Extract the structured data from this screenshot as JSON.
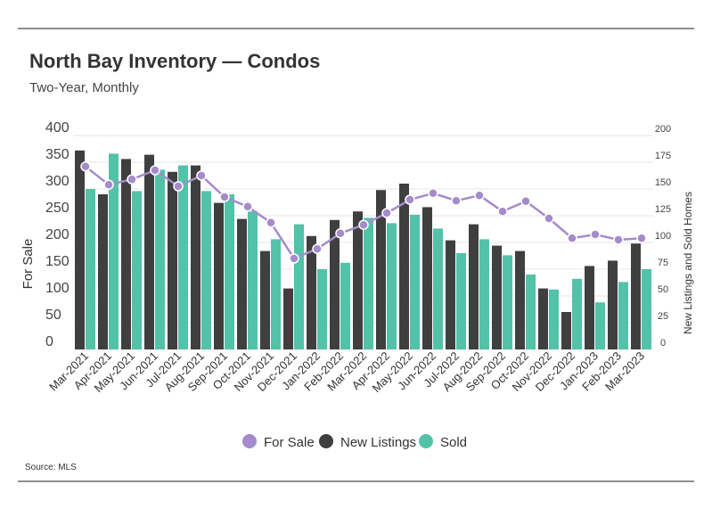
{
  "chart_data": {
    "type": "bar-line",
    "title": "North Bay Inventory — Condos",
    "subtitle": "Two-Year, Monthly",
    "source": "Source: MLS",
    "y_label": "For Sale",
    "y2_label": "New Listings and Sold Homes",
    "categories": [
      "Mar-2021",
      "Apr-2021",
      "May-2021",
      "Jun-2021",
      "Jul-2021",
      "Aug-2021",
      "Sep-2021",
      "Oct-2021",
      "Nov-2021",
      "Dec-2021",
      "Jan-2022",
      "Feb-2022",
      "Mar-2022",
      "Apr-2022",
      "May-2022",
      "Jun-2022",
      "Jul-2022",
      "Aug-2022",
      "Sep-2022",
      "Oct-2022",
      "Nov-2022",
      "Dec-2022",
      "Jan-2023",
      "Feb-2023",
      "Mar-2023"
    ],
    "series": [
      {
        "name": "For Sale",
        "type": "line",
        "color": "#a58bcb",
        "values": [
          342,
          308,
          318,
          335,
          305,
          325,
          285,
          267,
          237,
          170,
          188,
          217,
          233,
          255,
          280,
          292,
          278,
          288,
          258,
          277,
          245,
          208,
          215,
          205,
          208
        ]
      },
      {
        "name": "New Listings",
        "type": "bar",
        "axis": "y2",
        "color": "#3f3f3f",
        "values": [
          186,
          145,
          178,
          182,
          166,
          172,
          137,
          122,
          92,
          57,
          106,
          121,
          129,
          149,
          155,
          133,
          102,
          117,
          97,
          92,
          57,
          35,
          78,
          83,
          99
        ]
      },
      {
        "name": "Sold",
        "type": "bar",
        "axis": "y2",
        "color": "#52c2a8",
        "values": [
          150,
          183,
          148,
          168,
          172,
          148,
          145,
          129,
          103,
          117,
          75,
          81,
          123,
          118,
          126,
          113,
          90,
          103,
          88,
          70,
          56,
          66,
          44,
          63,
          75
        ]
      }
    ],
    "ylim": [
      0,
      400
    ],
    "yticks": [
      0,
      50,
      100,
      150,
      200,
      250,
      300,
      350,
      400
    ],
    "y2lim": [
      0,
      200
    ],
    "y2ticks": [
      0,
      25,
      50,
      75,
      100,
      125,
      150,
      175,
      200
    ],
    "grid": true
  }
}
